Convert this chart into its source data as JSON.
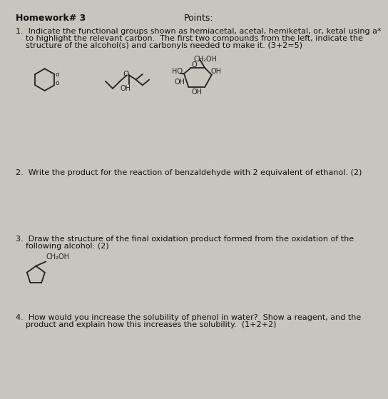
{
  "bg_color": "#c8c4be",
  "title_left": "Homework# 3",
  "title_right": "Points:",
  "q1_line1": "1.  Indicate the functional groups shown as hemiacetal, acetal, hemiketal, or, ketal using a*",
  "q1_line2": "    to highlight the relevant carbon.  The first two compounds from the left, indicate the",
  "q1_line3": "    structure of the alcohol(s) and carbonyls needed to make it. (3+2=5)",
  "q2_text": "2.  Write the product for the reaction of benzaldehyde with 2 equivalent of ethanol. (2)",
  "q3_line1": "3.  Draw the structure of the final oxidation product formed from the oxidation of the",
  "q3_line2": "    following alcohol: (2)",
  "q4_line1": "4.  How would you increase the solubility of phenol in water?  Show a reagent, and the",
  "q4_line2": "    product and explain how this increases the solubility.  (1+2+2)",
  "lc": "#222222",
  "tc": "#111111",
  "fs": 8.0,
  "fsh": 9.0
}
